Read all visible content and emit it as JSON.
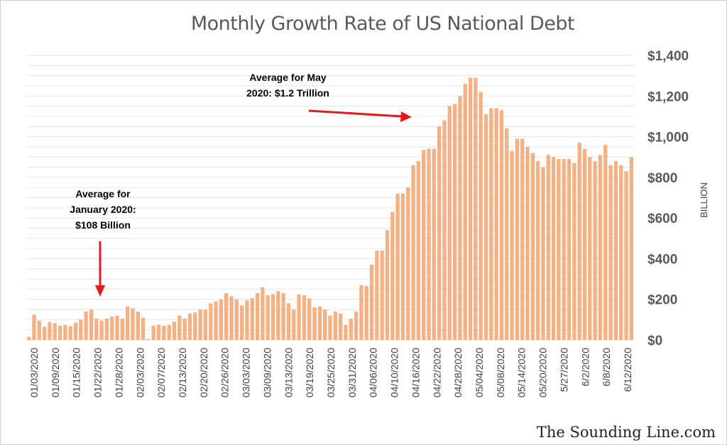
{
  "chart_data": {
    "type": "bar",
    "title": "Monthly Growth Rate of US National Debt",
    "ylabel": "BILLION",
    "ylim": [
      0,
      1400
    ],
    "y_ticks": [
      "$0",
      "$200",
      "$400",
      "$600",
      "$800",
      "$1,000",
      "$1,200",
      "$1,400"
    ],
    "x_tick_labels": [
      "01/03/2020",
      "01/09/2020",
      "01/15/2020",
      "01/22/2020",
      "01/28/2020",
      "02/03/2020",
      "02/07/2020",
      "02/13/2020",
      "02/20/2020",
      "02/26/2020",
      "03/03/2020",
      "03/09/2020",
      "03/13/2020",
      "03/19/2020",
      "03/25/2020",
      "03/31/2020",
      "04/06/2020",
      "04/10/2020",
      "04/16/2020",
      "04/22/2020",
      "04/28/2020",
      "05/04/2020",
      "05/08/2020",
      "05/14/2020",
      "05/20/2020",
      "5/27/2020",
      "6/2/2020",
      "6/8/2020",
      "6/12/2020"
    ],
    "values": [
      15,
      125,
      95,
      65,
      88,
      82,
      70,
      75,
      68,
      85,
      100,
      140,
      150,
      105,
      95,
      105,
      115,
      120,
      105,
      165,
      155,
      140,
      110,
      5,
      70,
      75,
      70,
      75,
      90,
      120,
      105,
      130,
      135,
      150,
      150,
      180,
      190,
      200,
      230,
      215,
      200,
      170,
      195,
      205,
      230,
      260,
      220,
      225,
      240,
      230,
      180,
      150,
      225,
      220,
      205,
      160,
      165,
      150,
      120,
      140,
      130,
      75,
      105,
      140,
      270,
      265,
      370,
      440,
      440,
      540,
      630,
      720,
      720,
      750,
      860,
      880,
      935,
      940,
      940,
      1050,
      1080,
      1150,
      1160,
      1200,
      1260,
      1290,
      1290,
      1220,
      1110,
      1140,
      1140,
      1130,
      1040,
      930,
      990,
      990,
      950,
      920,
      880,
      850,
      910,
      900,
      890,
      890,
      890,
      870,
      970,
      940,
      900,
      880,
      910,
      960,
      860,
      880,
      860,
      830,
      900
    ],
    "bar_color": "#f4b183",
    "annotations": [
      {
        "text_lines": [
          "Average for",
          "January 2020:",
          "$108 Billion"
        ]
      },
      {
        "text_lines": [
          "Average for May",
          "2020: $1.2 Trillion"
        ]
      }
    ],
    "arrow_color": "#e31a1c"
  },
  "watermark": "The Sounding Line.com"
}
